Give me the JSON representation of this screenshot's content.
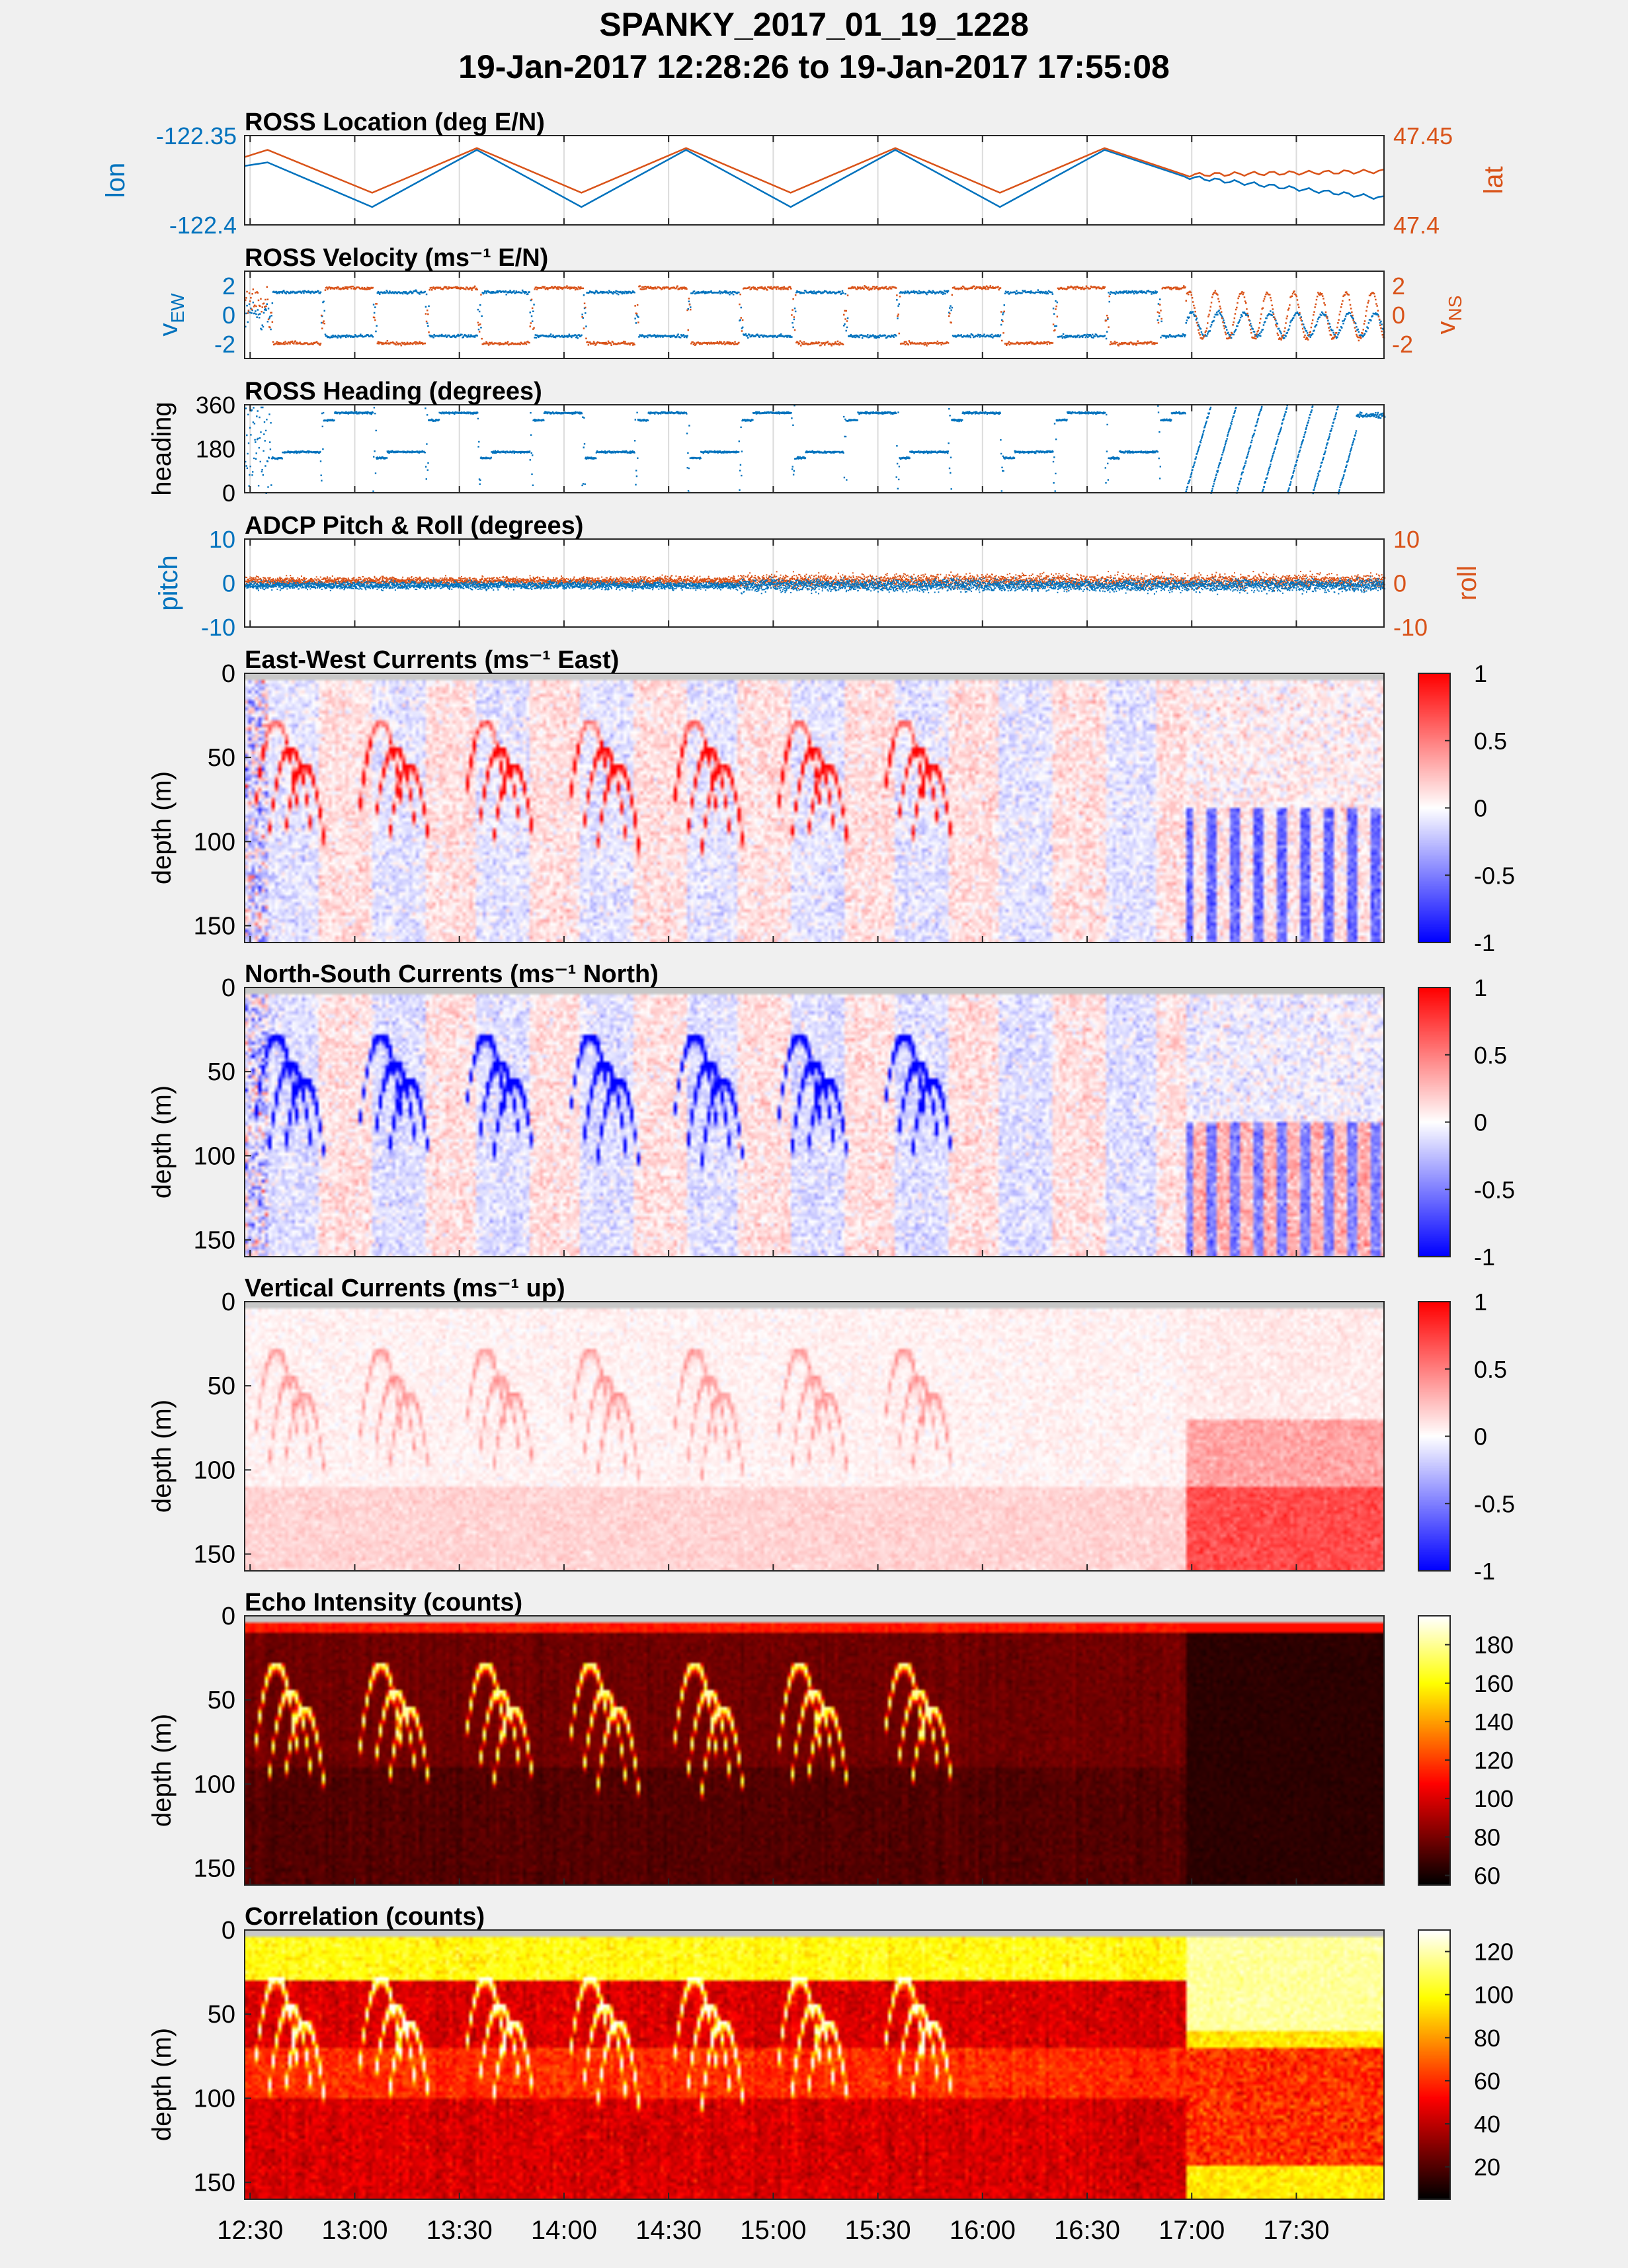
{
  "header": {
    "title": "SPANKY_2017_01_19_1228",
    "subtitle": "19-Jan-2017 12:28:26 to 19-Jan-2017 17:55:08"
  },
  "colors": {
    "blue": "#0072bd",
    "orange": "#d95319",
    "figure_bg": "#f0f0f0",
    "grid": "#dcdcdc"
  },
  "time_axis": {
    "start": "12:28:26",
    "end": "17:55:08",
    "tick_labels": [
      "12:30",
      "13:00",
      "13:30",
      "14:00",
      "14:30",
      "15:00",
      "15:30",
      "16:00",
      "16:30",
      "17:00",
      "17:30"
    ]
  },
  "chart_data": [
    {
      "id": "location",
      "type": "line",
      "title": "ROSS Location (deg E/N)",
      "left_ylabel": "lon",
      "right_ylabel": "lat",
      "left_ylim": [
        -122.4,
        -122.35
      ],
      "right_ylim": [
        47.4,
        47.45
      ],
      "left_ticks": [
        "-122.35",
        "-122.4"
      ],
      "right_ticks": [
        "47.45",
        "47.4"
      ],
      "series": [
        {
          "name": "lon",
          "x": [
            "12:28",
            "12:35",
            "13:05",
            "13:35",
            "14:05",
            "14:35",
            "15:05",
            "15:35",
            "16:05",
            "16:35",
            "16:58",
            "17:55"
          ],
          "values": [
            -122.367,
            -122.365,
            -122.39,
            -122.358,
            -122.39,
            -122.358,
            -122.39,
            -122.358,
            -122.39,
            -122.358,
            -122.373,
            -122.385
          ]
        },
        {
          "name": "lat",
          "x": [
            "12:28",
            "12:35",
            "13:05",
            "13:35",
            "14:05",
            "14:35",
            "15:05",
            "15:35",
            "16:05",
            "16:35",
            "16:58",
            "17:55"
          ],
          "values": [
            47.438,
            47.442,
            47.418,
            47.443,
            47.418,
            47.443,
            47.418,
            47.443,
            47.418,
            47.443,
            47.428,
            47.43
          ]
        }
      ]
    },
    {
      "id": "velocity",
      "type": "scatter",
      "title": "ROSS Velocity (ms⁻¹ E/N)",
      "left_ylabel": "vEW",
      "right_ylabel": "vNS",
      "ylim": [
        -3,
        3
      ],
      "left_ticks": [
        "2",
        "0",
        "-2"
      ],
      "right_ticks": [
        "2",
        "0",
        "-2"
      ],
      "series": [
        {
          "name": "vEW",
          "note": "alternating legs of about +1.5 and -1.5 m/s, oscillating about -0.5 after 16:58"
        },
        {
          "name": "vNS",
          "note": "alternating legs of about -2 and +2 m/s, oscillating +/-1.5 after 16:58"
        }
      ]
    },
    {
      "id": "heading",
      "type": "scatter",
      "title": "ROSS Heading (degrees)",
      "ylabel": "heading",
      "ylim": [
        0,
        360
      ],
      "ticks": [
        "360",
        "180",
        "0"
      ]
    },
    {
      "id": "pitchroll",
      "type": "scatter",
      "title": "ADCP Pitch & Roll (degrees)",
      "left_ylabel": "pitch",
      "right_ylabel": "roll",
      "ylim": [
        -10,
        10
      ],
      "left_ticks": [
        "10",
        "0",
        "-10"
      ],
      "right_ticks": [
        "10",
        "0",
        "-10"
      ]
    },
    {
      "id": "ew",
      "type": "heatmap",
      "title": "East-West Currents (ms⁻¹ East)",
      "ylabel": "depth (m)",
      "ylim": [
        0,
        160
      ],
      "yticks": [
        "0",
        "50",
        "100",
        "150"
      ],
      "clim": [
        -1,
        1
      ],
      "cticks": [
        "1",
        "0.5",
        "0",
        "-0.5",
        "-1"
      ],
      "colormap": "blue-white-red"
    },
    {
      "id": "ns",
      "type": "heatmap",
      "title": "North-South Currents (ms⁻¹ North)",
      "ylabel": "depth (m)",
      "ylim": [
        0,
        160
      ],
      "yticks": [
        "0",
        "50",
        "100",
        "150"
      ],
      "clim": [
        -1,
        1
      ],
      "cticks": [
        "1",
        "0.5",
        "0",
        "-0.5",
        "-1"
      ],
      "colormap": "blue-white-red"
    },
    {
      "id": "vert",
      "type": "heatmap",
      "title": "Vertical Currents (ms⁻¹ up)",
      "ylabel": "depth (m)",
      "ylim": [
        0,
        160
      ],
      "yticks": [
        "0",
        "50",
        "100",
        "150"
      ],
      "clim": [
        -1,
        1
      ],
      "cticks": [
        "1",
        "0.5",
        "0",
        "-0.5",
        "-1"
      ],
      "colormap": "blue-white-red"
    },
    {
      "id": "echo",
      "type": "heatmap",
      "title": "Echo Intensity (counts)",
      "ylabel": "depth (m)",
      "ylim": [
        0,
        160
      ],
      "yticks": [
        "0",
        "50",
        "100",
        "150"
      ],
      "clim": [
        55,
        195
      ],
      "cticks": [
        "180",
        "160",
        "140",
        "120",
        "100",
        "80",
        "60"
      ],
      "colormap": "hot"
    },
    {
      "id": "corr",
      "type": "heatmap",
      "title": "Correlation (counts)",
      "ylabel": "depth (m)",
      "ylim": [
        0,
        160
      ],
      "yticks": [
        "0",
        "50",
        "100",
        "150"
      ],
      "clim": [
        5,
        130
      ],
      "cticks": [
        "120",
        "100",
        "80",
        "60",
        "40",
        "20"
      ],
      "colormap": "hot"
    }
  ]
}
